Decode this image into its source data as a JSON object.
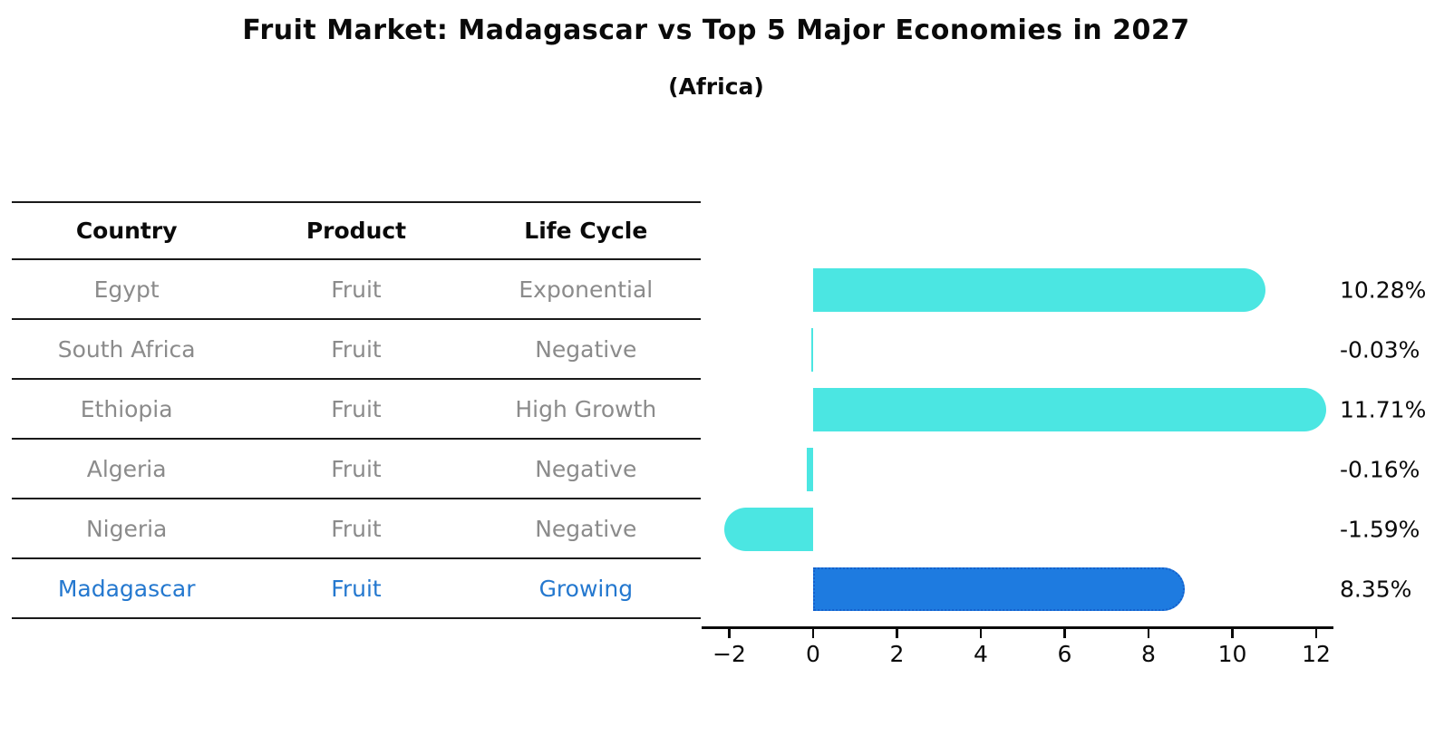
{
  "title": "Fruit Market: Madagascar vs Top 5 Major Economies in 2027",
  "subtitle": "(Africa)",
  "table": {
    "headers": [
      "Country",
      "Product",
      "Life Cycle"
    ],
    "rows": [
      {
        "country": "Egypt",
        "product": "Fruit",
        "life_cycle": "Exponential",
        "highlight": false
      },
      {
        "country": "South Africa",
        "product": "Fruit",
        "life_cycle": "Negative",
        "highlight": false
      },
      {
        "country": "Ethiopia",
        "product": "Fruit",
        "life_cycle": "High Growth",
        "highlight": false
      },
      {
        "country": "Algeria",
        "product": "Fruit",
        "life_cycle": "Negative",
        "highlight": false
      },
      {
        "country": "Nigeria",
        "product": "Fruit",
        "life_cycle": "Negative",
        "highlight": false
      },
      {
        "country": "Madagascar",
        "product": "Fruit",
        "life_cycle": "Growing",
        "highlight": true
      }
    ],
    "colors": {
      "header_text": "#0a0a0a",
      "row_text": "#8B8B8B",
      "highlight_text": "#2478CF",
      "line": "#1a1a1a"
    }
  },
  "chart_data": {
    "type": "bar",
    "orientation": "horizontal",
    "title": "Fruit Market: Madagascar vs Top 5 Major Economies in 2027",
    "subtitle": "(Africa)",
    "categories": [
      "Egypt",
      "South Africa",
      "Ethiopia",
      "Algeria",
      "Nigeria",
      "Madagascar"
    ],
    "values": [
      10.28,
      -0.03,
      11.71,
      -0.16,
      -1.59,
      8.35
    ],
    "value_labels": [
      "10.28%",
      "-0.03%",
      "11.71%",
      "-0.16%",
      "-1.59%",
      "8.35%"
    ],
    "highlight_category": "Madagascar",
    "xlim": [
      -2.65,
      12.4
    ],
    "x_ticks": [
      -2,
      0,
      2,
      4,
      6,
      8,
      10,
      12
    ],
    "x_tick_labels": [
      "−2",
      "0",
      "2",
      "4",
      "6",
      "8",
      "10",
      "12"
    ],
    "grid": false,
    "legend": false,
    "colors": {
      "bar": "#4BE6E2",
      "highlight_bar": "#1E7BE0",
      "highlight_border": "#1560CC",
      "axis": "#0a0a0a"
    }
  }
}
